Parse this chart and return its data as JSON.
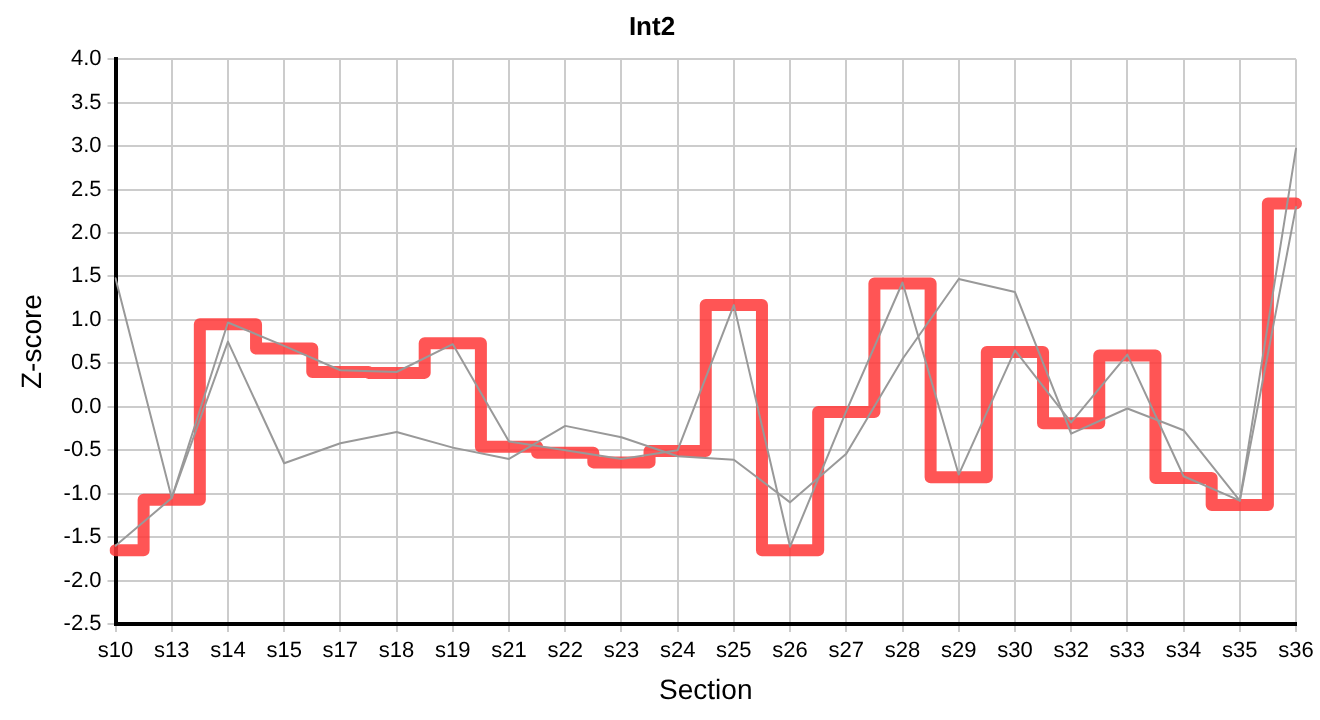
{
  "chart_data": {
    "type": "line",
    "title": "Int2",
    "xlabel": "Section",
    "ylabel": "Z-score",
    "categories": [
      "s10",
      "s13",
      "s14",
      "s15",
      "s17",
      "s18",
      "s19",
      "s21",
      "s22",
      "s23",
      "s24",
      "s25",
      "s26",
      "s27",
      "s28",
      "s29",
      "s30",
      "s32",
      "s33",
      "s34",
      "s35",
      "s36"
    ],
    "series": [
      {
        "type": "line",
        "color": "#999999",
        "values": [
          1.48,
          -1.05,
          0.75,
          -0.65,
          -0.42,
          -0.29,
          -0.47,
          -0.6,
          -0.22,
          -0.35,
          -0.57,
          -0.61,
          -1.1,
          -0.54,
          0.55,
          1.47,
          1.32,
          -0.31,
          -0.02,
          -0.27,
          -1.08,
          2.97
        ]
      },
      {
        "type": "line",
        "color": "#999999",
        "values": [
          -1.6,
          -1.05,
          0.97,
          0.7,
          0.42,
          0.4,
          0.72,
          -0.4,
          -0.5,
          -0.6,
          -0.5,
          1.17,
          -1.61,
          -0.05,
          1.43,
          -0.78,
          0.65,
          -0.18,
          0.6,
          -0.8,
          -1.08,
          2.3
        ]
      },
      {
        "type": "step",
        "color": "#ff3b3b",
        "values": [
          -1.65,
          -1.07,
          0.95,
          0.67,
          0.4,
          0.39,
          0.73,
          -0.46,
          -0.53,
          -0.64,
          -0.51,
          1.17,
          -1.65,
          -0.06,
          1.42,
          -0.81,
          0.63,
          -0.19,
          0.59,
          -0.82,
          -1.13,
          2.34
        ]
      }
    ],
    "ylim": [
      -2.5,
      4.0
    ],
    "yticks": [
      {
        "value": -2.5,
        "label": "-2.5"
      },
      {
        "value": -2,
        "label": "-2.0"
      },
      {
        "value": -1.5,
        "label": "-1.5"
      },
      {
        "value": -1,
        "label": "-1.0"
      },
      {
        "value": -0.5,
        "label": "-0.5"
      },
      {
        "value": 0,
        "label": "0.0"
      },
      {
        "value": 0.5,
        "label": "0.5"
      },
      {
        "value": 1,
        "label": "1.0"
      },
      {
        "value": 1.5,
        "label": "1.5"
      },
      {
        "value": 2,
        "label": "2.0"
      },
      {
        "value": 2.5,
        "label": "2.5"
      },
      {
        "value": 3,
        "label": "3.0"
      },
      {
        "value": 3.5,
        "label": "3.5"
      },
      {
        "value": 4,
        "label": "4.0"
      }
    ],
    "grid": true,
    "legend": false,
    "marker": "none"
  }
}
